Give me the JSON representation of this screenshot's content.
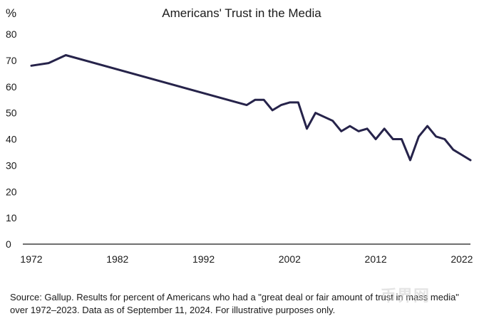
{
  "chart_data": {
    "type": "line",
    "title": "Americans' Trust in the Media",
    "ylabel": "%",
    "xlabel": "",
    "ylim": [
      0,
      80
    ],
    "xlim": [
      1972,
      2023
    ],
    "y_ticks": [
      0,
      10,
      20,
      30,
      40,
      50,
      60,
      70,
      80
    ],
    "x_ticks": [
      1972,
      1982,
      1992,
      2002,
      2012,
      2022
    ],
    "grid": false,
    "line_color": "#26234a",
    "series": [
      {
        "x": [
          1972,
          1974,
          1976,
          1997,
          1998,
          1999,
          2000,
          2001,
          2002,
          2003,
          2004,
          2005,
          2007,
          2008,
          2009,
          2010,
          2011,
          2012,
          2013,
          2014,
          2015,
          2016,
          2017,
          2018,
          2019,
          2020,
          2021,
          2022,
          2023
        ],
        "y": [
          68,
          69,
          72,
          53,
          55,
          55,
          51,
          53,
          54,
          54,
          44,
          50,
          47,
          43,
          45,
          43,
          44,
          40,
          44,
          40,
          40,
          32,
          41,
          45,
          41,
          40,
          36,
          34,
          32
        ]
      }
    ]
  },
  "source_note": "Source: Gallup. Results for percent of Americans who had a \"great deal or fair amount of trust in mass media\" over 1972–2023. Data as of September 11, 2024. For illustrative purposes only.",
  "watermark": "币界网"
}
